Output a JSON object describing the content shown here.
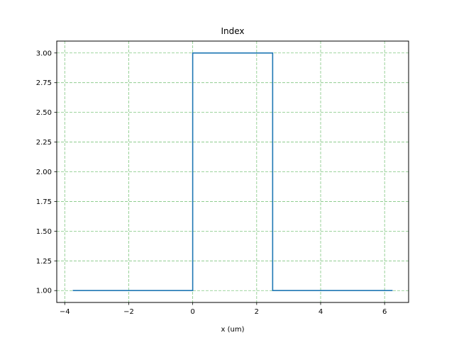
{
  "chart_data": {
    "type": "line",
    "title": "Index",
    "xlabel": "x (um)",
    "ylabel": "",
    "xlim": [
      -4.25,
      6.75
    ],
    "ylim": [
      0.9,
      3.1
    ],
    "xticks": [
      -4,
      -2,
      0,
      2,
      4,
      6
    ],
    "xtick_labels": [
      "−4",
      "−2",
      "0",
      "2",
      "4",
      "6"
    ],
    "yticks": [
      1.0,
      1.25,
      1.5,
      1.75,
      2.0,
      2.25,
      2.5,
      2.75,
      3.0
    ],
    "ytick_labels": [
      "1.00",
      "1.25",
      "1.50",
      "1.75",
      "2.00",
      "2.25",
      "2.50",
      "2.75",
      "3.00"
    ],
    "grid": true,
    "grid_color": "#2ca02c",
    "line_color": "#1f77b4",
    "series": [
      {
        "x": [
          -3.75,
          0.0,
          0.0,
          2.5,
          2.5,
          6.25
        ],
        "y": [
          1.0,
          1.0,
          3.0,
          3.0,
          1.0,
          1.0
        ]
      }
    ]
  }
}
